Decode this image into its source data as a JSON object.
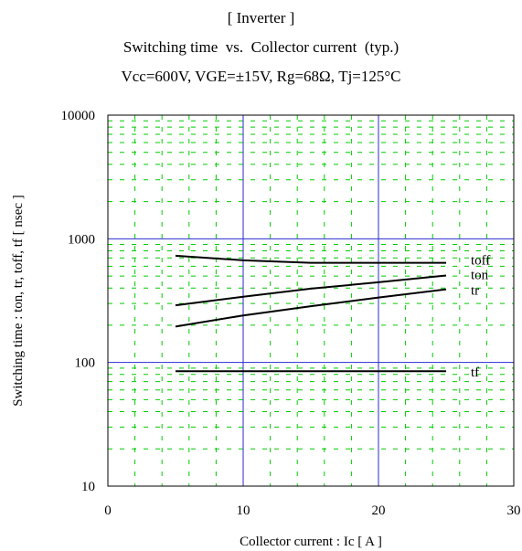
{
  "chart_data": {
    "type": "line",
    "title": "[ Inverter ]",
    "subtitle": "Switching time  vs.  Collector current  (typ.)",
    "conditions": "Vcc=600V, VGE=±15V, Rg=68Ω, Tj=125°C",
    "xlabel": "Collector current  :  Ic  [ A ]",
    "ylabel": "Switching time  :  ton, tr, toff, tf  [ nsec ]",
    "xlim": [
      0,
      30
    ],
    "ylim": [
      10,
      10000
    ],
    "yscale": "log",
    "x_ticks": [
      "0",
      "10",
      "20",
      "30"
    ],
    "y_ticks": [
      "10",
      "100",
      "1000",
      "10000"
    ],
    "grid": true,
    "colors": {
      "major_grid": "#2a2ad0",
      "minor_grid": "#00cc00",
      "series": "#000000",
      "axis": "#000000"
    },
    "series": [
      {
        "name": "toff",
        "x": [
          5,
          10,
          15,
          20,
          25
        ],
        "y": [
          730,
          670,
          640,
          640,
          640
        ]
      },
      {
        "name": "ton",
        "x": [
          5,
          10,
          15,
          20,
          25
        ],
        "y": [
          290,
          340,
          395,
          445,
          505
        ]
      },
      {
        "name": "tr",
        "x": [
          5,
          10,
          15,
          20,
          25
        ],
        "y": [
          195,
          240,
          285,
          335,
          390
        ]
      },
      {
        "name": "tf",
        "x": [
          5,
          10,
          15,
          20,
          25
        ],
        "y": [
          85,
          85,
          85,
          85,
          85
        ]
      }
    ]
  }
}
